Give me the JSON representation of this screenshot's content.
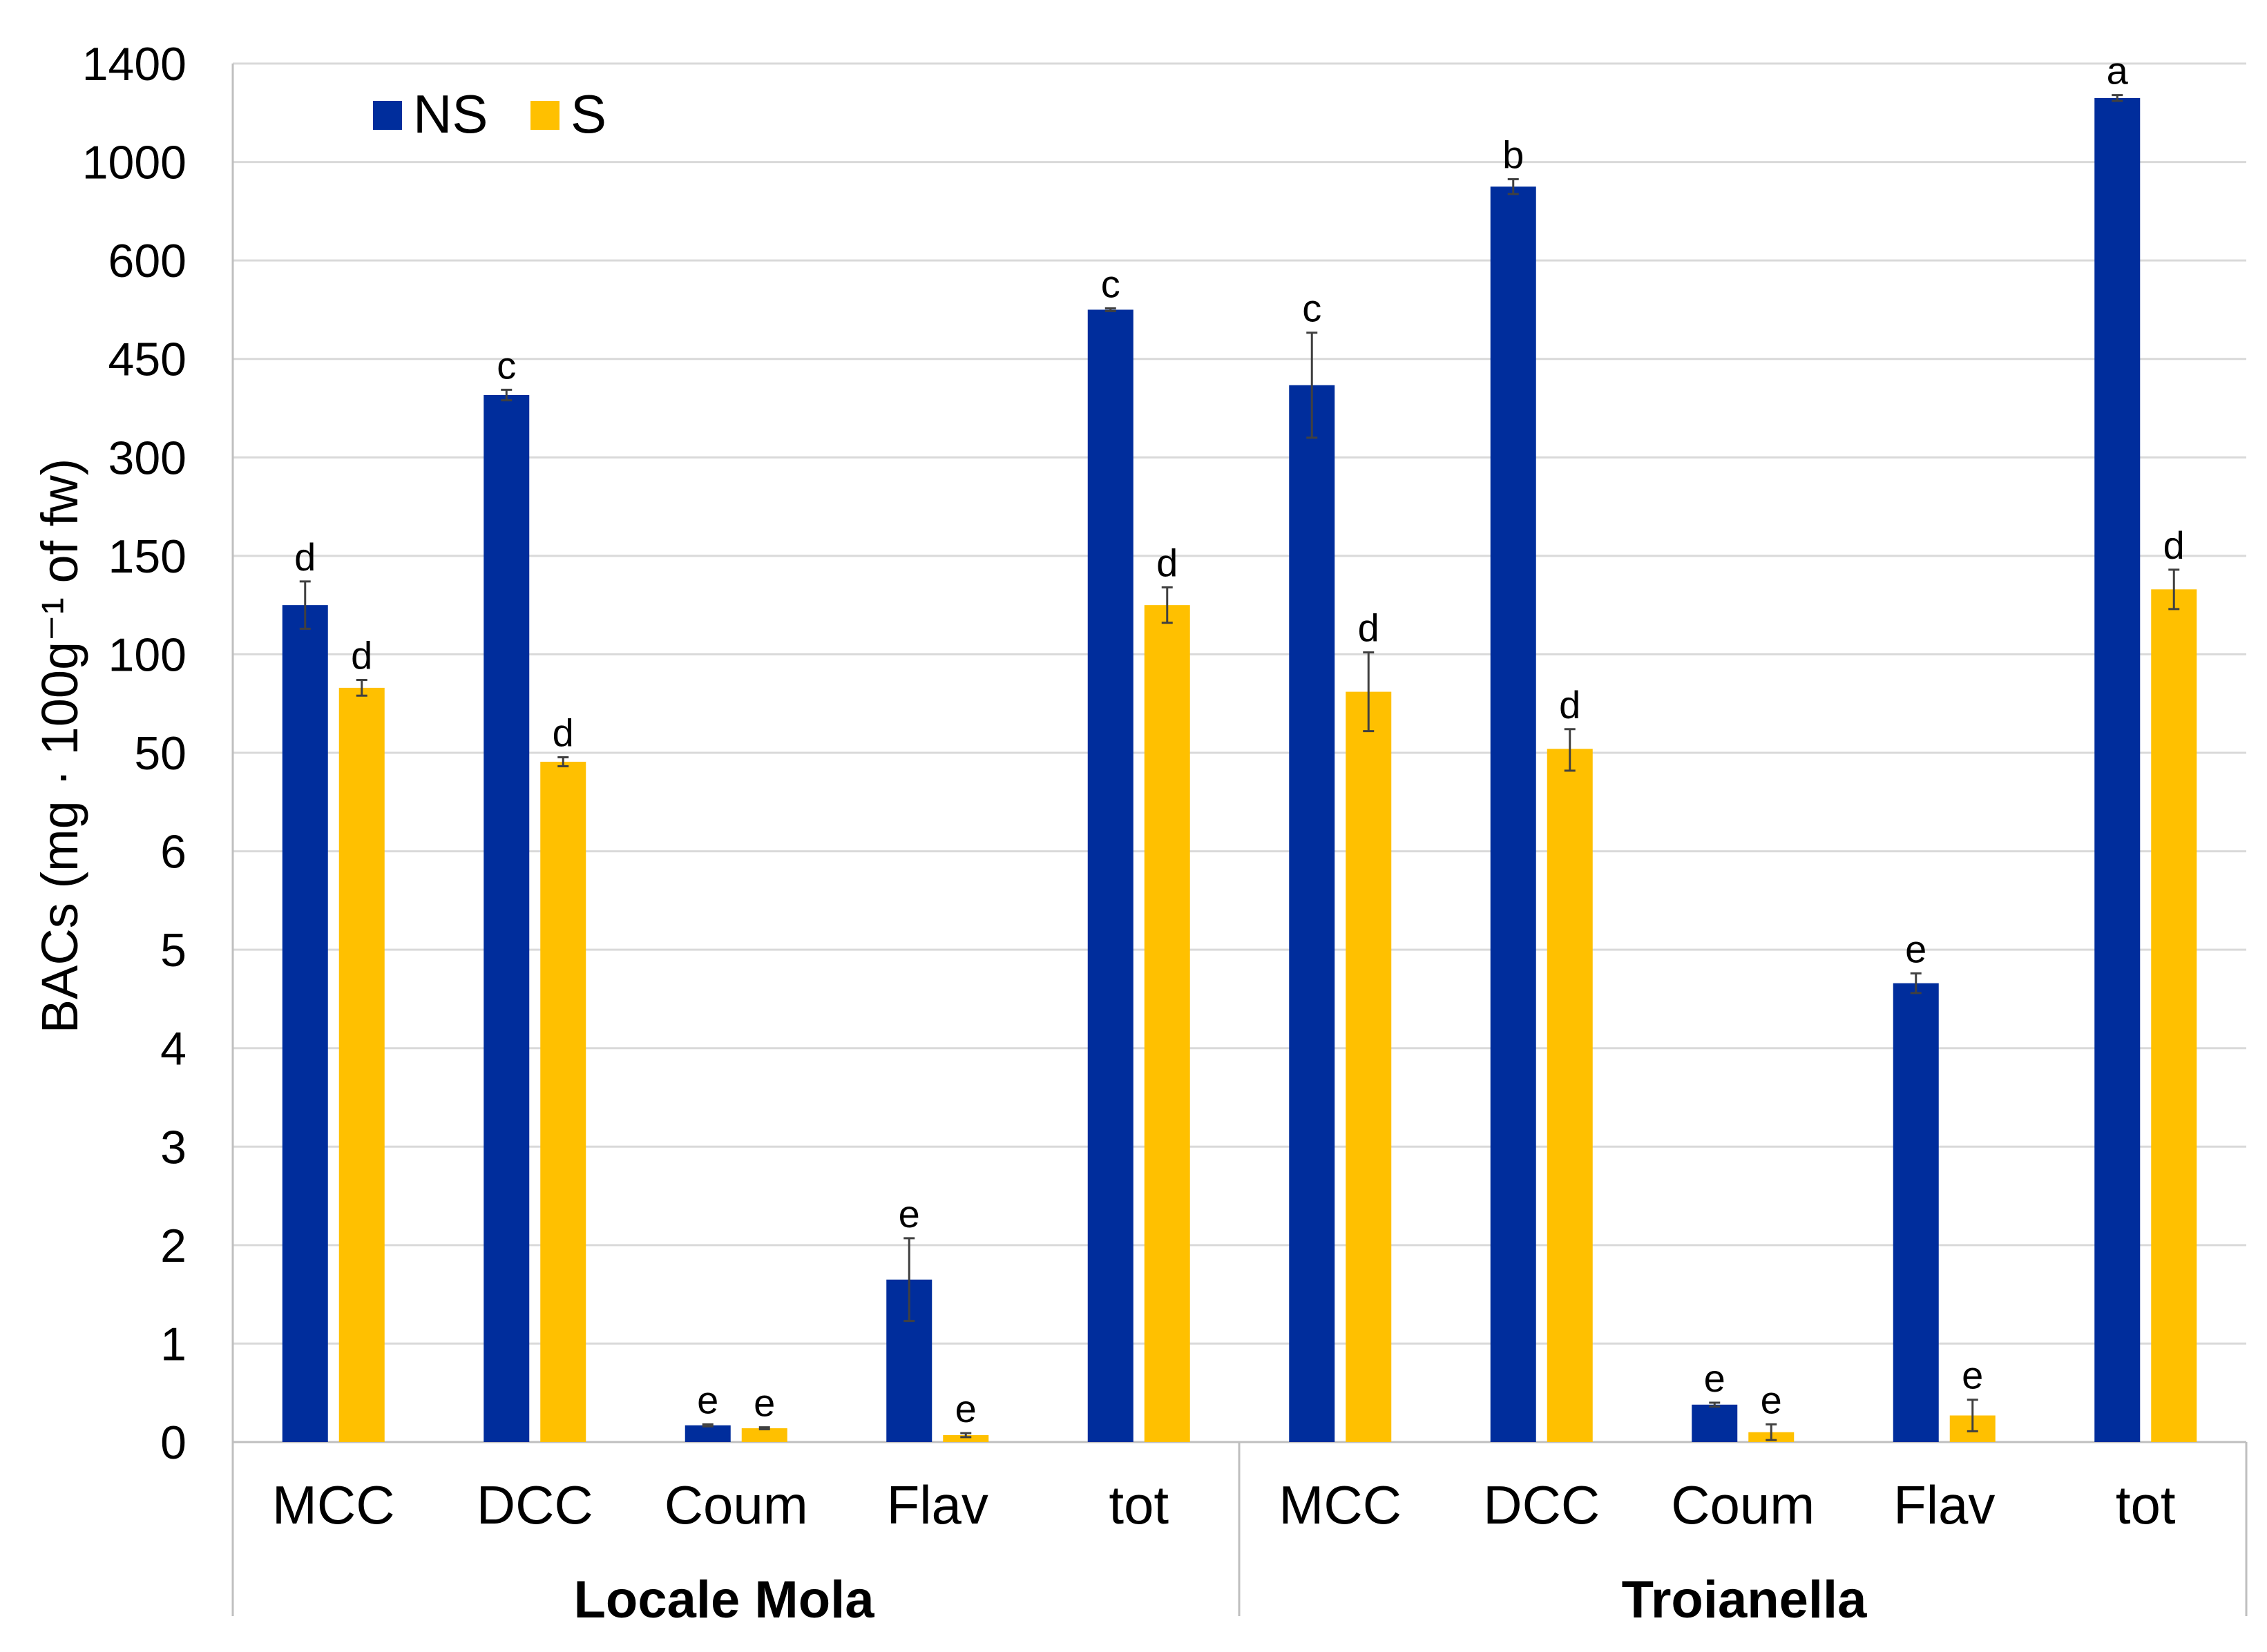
{
  "chart_data": {
    "type": "bar",
    "ylabel": "BACs (mg · 100g⁻¹ of fw)",
    "y_ticks": [
      "0",
      "1",
      "2",
      "3",
      "4",
      "5",
      "6",
      "50",
      "100",
      "150",
      "300",
      "450",
      "600",
      "1000",
      "1400"
    ],
    "y_tick_values": [
      0,
      1,
      2,
      3,
      4,
      5,
      6,
      50,
      100,
      150,
      300,
      450,
      600,
      1000,
      1400
    ],
    "grid": true,
    "legend_position": "top-left",
    "categories": [
      "MCC",
      "DCC",
      "Coum",
      "Flav",
      "tot",
      "MCC",
      "DCC",
      "Coum",
      "Flav",
      "tot"
    ],
    "groups": [
      {
        "name": "Locale Mola",
        "categories": [
          "MCC",
          "DCC",
          "Coum",
          "Flav",
          "tot"
        ]
      },
      {
        "name": "Troianella",
        "categories": [
          "MCC",
          "DCC",
          "Coum",
          "Flav",
          "tot"
        ]
      }
    ],
    "series": [
      {
        "name": "NS",
        "color": "#002D9C",
        "values": [
          125,
          395,
          0.17,
          1.65,
          525,
          410,
          900,
          0.38,
          4.66,
          1260
        ],
        "errors": [
          12,
          8,
          0.01,
          0.42,
          2,
          80,
          30,
          0.02,
          0.1,
          12
        ],
        "letters": [
          "d",
          "c",
          "e",
          "e",
          "c",
          "c",
          "b",
          "e",
          "e",
          "a"
        ]
      },
      {
        "name": "S",
        "color": "#FFC000",
        "values": [
          83,
          46,
          0.14,
          0.07,
          125,
          81,
          52,
          0.1,
          0.27,
          133
        ],
        "errors": [
          4,
          2,
          0.01,
          0.02,
          9,
          20,
          10,
          0.08,
          0.16,
          10
        ],
        "letters": [
          "d",
          "d",
          "e",
          "e",
          "d",
          "d",
          "d",
          "e",
          "e",
          "d"
        ]
      }
    ]
  }
}
